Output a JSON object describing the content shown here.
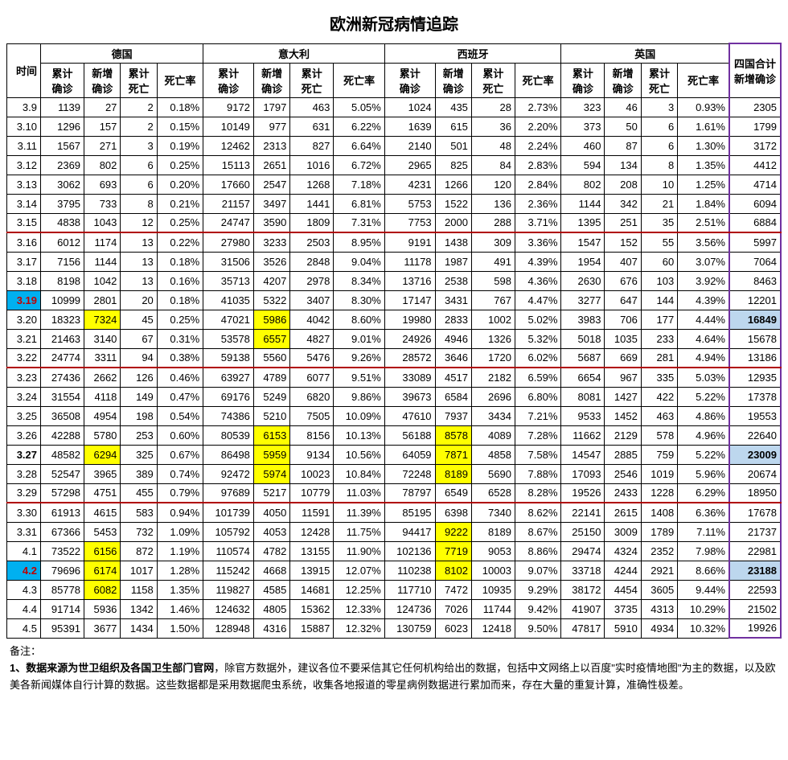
{
  "title": "欧洲新冠病情追踪",
  "columns": {
    "time": "时间",
    "countries": [
      {
        "name": "德国",
        "sub": [
          "累计确诊",
          "新增确诊",
          "累计死亡",
          "死亡率"
        ]
      },
      {
        "name": "意大利",
        "sub": [
          "累计确诊",
          "新增确诊",
          "累计死亡",
          "死亡率"
        ]
      },
      {
        "name": "西班牙",
        "sub": [
          "累计确诊",
          "新增确诊",
          "累计死亡",
          "死亡率"
        ]
      },
      {
        "name": "英国",
        "sub": [
          "累计确诊",
          "新增确诊",
          "累计死亡",
          "死亡率"
        ]
      }
    ],
    "total": "四国合计新增确诊"
  },
  "rows": [
    {
      "date": "3.9",
      "de": [
        1139,
        27,
        2,
        "0.18%"
      ],
      "it": [
        9172,
        1797,
        463,
        "5.05%"
      ],
      "es": [
        1024,
        435,
        28,
        "2.73%"
      ],
      "uk": [
        323,
        46,
        3,
        "0.93%"
      ],
      "total": 2305
    },
    {
      "date": "3.10",
      "de": [
        1296,
        157,
        2,
        "0.15%"
      ],
      "it": [
        10149,
        977,
        631,
        "6.22%"
      ],
      "es": [
        1639,
        615,
        36,
        "2.20%"
      ],
      "uk": [
        373,
        50,
        6,
        "1.61%"
      ],
      "total": 1799
    },
    {
      "date": "3.11",
      "de": [
        1567,
        271,
        3,
        "0.19%"
      ],
      "it": [
        12462,
        2313,
        827,
        "6.64%"
      ],
      "es": [
        2140,
        501,
        48,
        "2.24%"
      ],
      "uk": [
        460,
        87,
        6,
        "1.30%"
      ],
      "total": 3172
    },
    {
      "date": "3.12",
      "de": [
        2369,
        802,
        6,
        "0.25%"
      ],
      "it": [
        15113,
        2651,
        1016,
        "6.72%"
      ],
      "es": [
        2965,
        825,
        84,
        "2.83%"
      ],
      "uk": [
        594,
        134,
        8,
        "1.35%"
      ],
      "total": 4412
    },
    {
      "date": "3.13",
      "de": [
        3062,
        693,
        6,
        "0.20%"
      ],
      "it": [
        17660,
        2547,
        1268,
        "7.18%"
      ],
      "es": [
        4231,
        1266,
        120,
        "2.84%"
      ],
      "uk": [
        802,
        208,
        10,
        "1.25%"
      ],
      "total": 4714
    },
    {
      "date": "3.14",
      "de": [
        3795,
        733,
        8,
        "0.21%"
      ],
      "it": [
        21157,
        3497,
        1441,
        "6.81%"
      ],
      "es": [
        5753,
        1522,
        136,
        "2.36%"
      ],
      "uk": [
        1144,
        342,
        21,
        "1.84%"
      ],
      "total": 6094
    },
    {
      "date": "3.15",
      "de": [
        4838,
        1043,
        12,
        "0.25%"
      ],
      "it": [
        24747,
        3590,
        1809,
        "7.31%"
      ],
      "es": [
        7753,
        2000,
        288,
        "3.71%"
      ],
      "uk": [
        1395,
        251,
        35,
        "2.51%"
      ],
      "total": 6884,
      "weekEnd": true
    },
    {
      "date": "3.16",
      "de": [
        6012,
        1174,
        13,
        "0.22%"
      ],
      "it": [
        27980,
        3233,
        2503,
        "8.95%"
      ],
      "es": [
        9191,
        1438,
        309,
        "3.36%"
      ],
      "uk": [
        1547,
        152,
        55,
        "3.56%"
      ],
      "total": 5997
    },
    {
      "date": "3.17",
      "de": [
        7156,
        1144,
        13,
        "0.18%"
      ],
      "it": [
        31506,
        3526,
        2848,
        "9.04%"
      ],
      "es": [
        11178,
        1987,
        491,
        "4.39%"
      ],
      "uk": [
        1954,
        407,
        60,
        "3.07%"
      ],
      "total": 7064
    },
    {
      "date": "3.18",
      "de": [
        8198,
        1042,
        13,
        "0.16%"
      ],
      "it": [
        35713,
        4207,
        2978,
        "8.34%"
      ],
      "es": [
        13716,
        2538,
        598,
        "4.36%"
      ],
      "uk": [
        2630,
        676,
        103,
        "3.92%"
      ],
      "total": 8463
    },
    {
      "date": "3.19",
      "dateHL": "cyan",
      "de": [
        10999,
        2801,
        20,
        "0.18%"
      ],
      "it": [
        41035,
        5322,
        3407,
        "8.30%"
      ],
      "es": [
        17147,
        3431,
        767,
        "4.47%"
      ],
      "uk": [
        3277,
        647,
        144,
        "4.39%"
      ],
      "total": 12201
    },
    {
      "date": "3.20",
      "de": [
        18323,
        7324,
        45,
        "0.25%"
      ],
      "deHL": [
        null,
        "yellow",
        null,
        null
      ],
      "it": [
        47021,
        5986,
        4042,
        "8.60%"
      ],
      "itHL": [
        null,
        "yellow",
        null,
        null
      ],
      "es": [
        19980,
        2833,
        1002,
        "5.02%"
      ],
      "uk": [
        3983,
        706,
        177,
        "4.44%"
      ],
      "total": 16849,
      "totalHL": "blue"
    },
    {
      "date": "3.21",
      "de": [
        21463,
        3140,
        67,
        "0.31%"
      ],
      "it": [
        53578,
        6557,
        4827,
        "9.01%"
      ],
      "itHL": [
        null,
        "yellow",
        null,
        null
      ],
      "es": [
        24926,
        4946,
        1326,
        "5.32%"
      ],
      "uk": [
        5018,
        1035,
        233,
        "4.64%"
      ],
      "total": 15678
    },
    {
      "date": "3.22",
      "de": [
        24774,
        3311,
        94,
        "0.38%"
      ],
      "it": [
        59138,
        5560,
        5476,
        "9.26%"
      ],
      "es": [
        28572,
        3646,
        1720,
        "6.02%"
      ],
      "uk": [
        5687,
        669,
        281,
        "4.94%"
      ],
      "total": 13186,
      "weekEnd": true
    },
    {
      "date": "3.23",
      "de": [
        27436,
        2662,
        126,
        "0.46%"
      ],
      "it": [
        63927,
        4789,
        6077,
        "9.51%"
      ],
      "es": [
        33089,
        4517,
        2182,
        "6.59%"
      ],
      "uk": [
        6654,
        967,
        335,
        "5.03%"
      ],
      "total": 12935
    },
    {
      "date": "3.24",
      "de": [
        31554,
        4118,
        149,
        "0.47%"
      ],
      "it": [
        69176,
        5249,
        6820,
        "9.86%"
      ],
      "es": [
        39673,
        6584,
        2696,
        "6.80%"
      ],
      "uk": [
        8081,
        1427,
        422,
        "5.22%"
      ],
      "total": 17378
    },
    {
      "date": "3.25",
      "de": [
        36508,
        4954,
        198,
        "0.54%"
      ],
      "it": [
        74386,
        5210,
        7505,
        "10.09%"
      ],
      "es": [
        47610,
        7937,
        3434,
        "7.21%"
      ],
      "uk": [
        9533,
        1452,
        463,
        "4.86%"
      ],
      "total": 19553
    },
    {
      "date": "3.26",
      "de": [
        42288,
        5780,
        253,
        "0.60%"
      ],
      "it": [
        80539,
        6153,
        8156,
        "10.13%"
      ],
      "itHL": [
        null,
        "yellow",
        null,
        null
      ],
      "es": [
        56188,
        8578,
        4089,
        "7.28%"
      ],
      "esHL": [
        null,
        "yellow",
        null,
        null
      ],
      "uk": [
        11662,
        2129,
        578,
        "4.96%"
      ],
      "total": 22640
    },
    {
      "date": "3.27",
      "dateHL": "bold",
      "de": [
        48582,
        6294,
        325,
        "0.67%"
      ],
      "deHL": [
        null,
        "yellow",
        null,
        null
      ],
      "it": [
        86498,
        5959,
        9134,
        "10.56%"
      ],
      "itHL": [
        null,
        "yellow",
        null,
        null
      ],
      "es": [
        64059,
        7871,
        4858,
        "7.58%"
      ],
      "esHL": [
        null,
        "yellow",
        null,
        null
      ],
      "uk": [
        14547,
        2885,
        759,
        "5.22%"
      ],
      "total": 23009,
      "totalHL": "blue"
    },
    {
      "date": "3.28",
      "de": [
        52547,
        3965,
        389,
        "0.74%"
      ],
      "it": [
        92472,
        5974,
        10023,
        "10.84%"
      ],
      "itHL": [
        null,
        "yellow",
        null,
        null
      ],
      "es": [
        72248,
        8189,
        5690,
        "7.88%"
      ],
      "esHL": [
        null,
        "yellow",
        null,
        null
      ],
      "uk": [
        17093,
        2546,
        1019,
        "5.96%"
      ],
      "total": 20674
    },
    {
      "date": "3.29",
      "de": [
        57298,
        4751,
        455,
        "0.79%"
      ],
      "it": [
        97689,
        5217,
        10779,
        "11.03%"
      ],
      "es": [
        78797,
        6549,
        6528,
        "8.28%"
      ],
      "uk": [
        19526,
        2433,
        1228,
        "6.29%"
      ],
      "total": 18950,
      "weekEnd": true
    },
    {
      "date": "3.30",
      "de": [
        61913,
        4615,
        583,
        "0.94%"
      ],
      "it": [
        101739,
        4050,
        11591,
        "11.39%"
      ],
      "es": [
        85195,
        6398,
        7340,
        "8.62%"
      ],
      "uk": [
        22141,
        2615,
        1408,
        "6.36%"
      ],
      "total": 17678
    },
    {
      "date": "3.31",
      "de": [
        67366,
        5453,
        732,
        "1.09%"
      ],
      "it": [
        105792,
        4053,
        12428,
        "11.75%"
      ],
      "es": [
        94417,
        9222,
        8189,
        "8.67%"
      ],
      "esHL": [
        null,
        "yellow",
        null,
        null
      ],
      "uk": [
        25150,
        3009,
        1789,
        "7.11%"
      ],
      "total": 21737
    },
    {
      "date": "4.1",
      "de": [
        73522,
        6156,
        872,
        "1.19%"
      ],
      "deHL": [
        null,
        "yellow",
        null,
        null
      ],
      "it": [
        110574,
        4782,
        13155,
        "11.90%"
      ],
      "es": [
        102136,
        7719,
        9053,
        "8.86%"
      ],
      "esHL": [
        null,
        "yellow",
        null,
        null
      ],
      "uk": [
        29474,
        4324,
        2352,
        "7.98%"
      ],
      "total": 22981
    },
    {
      "date": "4.2",
      "dateHL": "cyan",
      "de": [
        79696,
        6174,
        1017,
        "1.28%"
      ],
      "deHL": [
        null,
        "yellow",
        null,
        null
      ],
      "it": [
        115242,
        4668,
        13915,
        "12.07%"
      ],
      "es": [
        110238,
        8102,
        10003,
        "9.07%"
      ],
      "esHL": [
        null,
        "yellow",
        null,
        null
      ],
      "uk": [
        33718,
        4244,
        2921,
        "8.66%"
      ],
      "total": 23188,
      "totalHL": "blue"
    },
    {
      "date": "4.3",
      "de": [
        85778,
        6082,
        1158,
        "1.35%"
      ],
      "deHL": [
        null,
        "yellow",
        null,
        null
      ],
      "it": [
        119827,
        4585,
        14681,
        "12.25%"
      ],
      "es": [
        117710,
        7472,
        10935,
        "9.29%"
      ],
      "uk": [
        38172,
        4454,
        3605,
        "9.44%"
      ],
      "total": 22593
    },
    {
      "date": "4.4",
      "de": [
        91714,
        5936,
        1342,
        "1.46%"
      ],
      "it": [
        124632,
        4805,
        15362,
        "12.33%"
      ],
      "es": [
        124736,
        7026,
        11744,
        "9.42%"
      ],
      "uk": [
        41907,
        3735,
        4313,
        "10.29%"
      ],
      "total": 21502
    },
    {
      "date": "4.5",
      "de": [
        95391,
        3677,
        1434,
        "1.50%"
      ],
      "it": [
        128948,
        4316,
        15887,
        "12.32%"
      ],
      "es": [
        130759,
        6023,
        12418,
        "9.50%"
      ],
      "uk": [
        47817,
        5910,
        4934,
        "10.32%"
      ],
      "total": 19926
    }
  ],
  "footnote": {
    "label": "备注：",
    "line1_bold": "1、数据来源为世卫组织及各国卫生部门官网",
    "line1_rest": "，除官方数据外，建议各位不要采信其它任何机构给出的数据，包括中文网络上以百度\"实时疫情地图\"为主的数据，以及欧美各新闻媒体自行计算的数据。这些数据都是采用数据爬虫系统，收集各地报道的零星病例数据进行累加而来，存在大量的重复计算，准确性极差。"
  },
  "style": {
    "hl_yellow": "#ffff00",
    "hl_cyan": "#00b0f0",
    "hl_blue": "#bdd7ee",
    "week_sep_color": "#b00000",
    "purple": "#7030a0"
  }
}
